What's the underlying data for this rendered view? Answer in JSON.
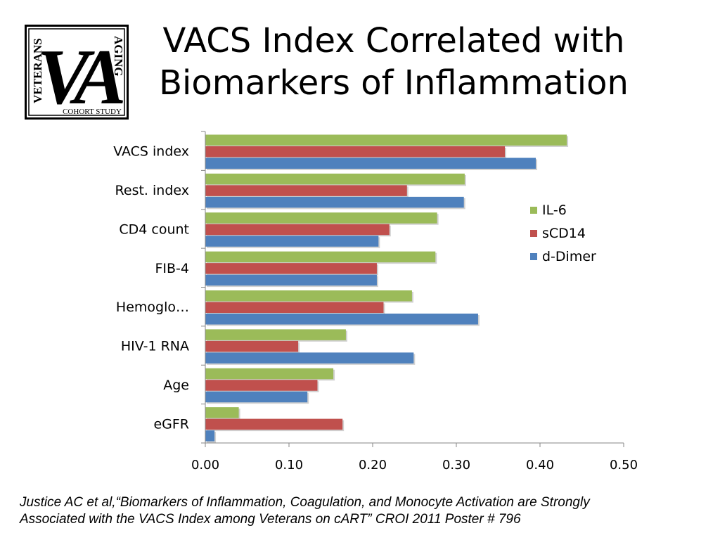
{
  "slide": {
    "title_line1": "VACS Index Correlated with",
    "title_line2": "Biomarkers of Inflammation",
    "citation_line1": "Justice AC et al,“Biomarkers of Inflammation, Coagulation, and Monocyte Activation are Strongly",
    "citation_line2": "Associated with the VACS Index among Veterans on cART” CROI 2011 Poster # 796"
  },
  "logo": {
    "letters": "VA",
    "side_left": "VETERANS",
    "side_right": "AGING",
    "bottom": "COHORT STUDY"
  },
  "chart_data": {
    "type": "bar",
    "orientation": "horizontal",
    "categories": [
      "VACS index",
      "Rest. index",
      "CD4 count",
      "FIB-4",
      "Hemoglo…",
      "HIV-1 RNA",
      "Age",
      "eGFR"
    ],
    "series": [
      {
        "name": "IL-6",
        "color": "#9bbb59",
        "values": [
          0.432,
          0.31,
          0.277,
          0.275,
          0.247,
          0.168,
          0.153,
          0.04
        ]
      },
      {
        "name": "sCD14",
        "color": "#c0504d",
        "values": [
          0.358,
          0.241,
          0.22,
          0.205,
          0.213,
          0.111,
          0.134,
          0.164
        ]
      },
      {
        "name": "d-Dimer",
        "color": "#4f81bd",
        "values": [
          0.395,
          0.309,
          0.207,
          0.205,
          0.326,
          0.249,
          0.122,
          0.011
        ]
      }
    ],
    "xlim": [
      0,
      0.5
    ],
    "xticks": [
      "0.00",
      "0.10",
      "0.20",
      "0.30",
      "0.40",
      "0.50"
    ],
    "xlabel": "",
    "ylabel": "",
    "legend": "right",
    "grid": false
  }
}
